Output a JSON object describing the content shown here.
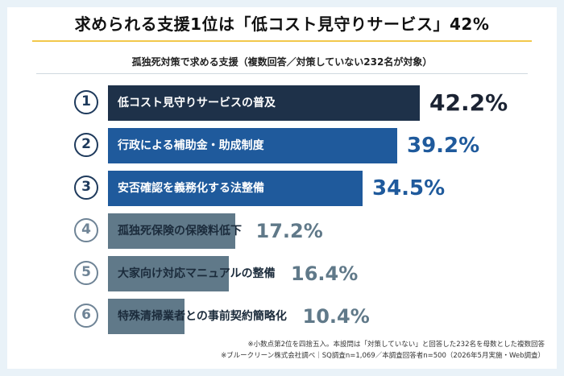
{
  "title": "求められる支援1位は「低コスト見守りサービス」42%",
  "subtitle": "孤独死対策で求める支援（複数回答／対策していない232名が対象）",
  "colors": {
    "dark_navy": "#1e3149",
    "blue": "#1f5a9c",
    "gray_blue": "#607989",
    "rank_dark": "#1e3a5c",
    "rank_light": "#6f8496",
    "accent_line": "#f2c84b"
  },
  "chart_data": {
    "type": "bar",
    "orientation": "horizontal",
    "title": "求められる支援1位は「低コスト見守りサービス」42%",
    "subtitle": "孤独死対策で求める支援（複数回答／対策していない232名が対象）",
    "unit": "%",
    "ranks": [
      "①",
      "②",
      "③",
      "④",
      "⑤",
      "⑥"
    ],
    "categories": [
      "低コスト見守りサービスの普及",
      "行政による補助金・助成制度",
      "安否確認を義務化する法整備",
      "孤独死保険の保険料低下",
      "大家向け対応マニュアルの整備",
      "特殊清掃業者との事前契約簡略化"
    ],
    "values": [
      42.2,
      39.2,
      34.5,
      17.2,
      16.4,
      10.4
    ],
    "value_labels": [
      "42.2%",
      "39.2%",
      "34.5%",
      "17.2%",
      "16.4%",
      "10.4%"
    ],
    "xlim": [
      0,
      42.2
    ]
  },
  "footnotes": [
    "※小数点第2位を四捨五入。本設問は「対策していない」と回答した232名を母数とした複数回答",
    "※ブルークリーン株式会社調べ｜SQ調査n=1,069／本調査回答者n=500（2026年5月実施・Web調査）"
  ]
}
